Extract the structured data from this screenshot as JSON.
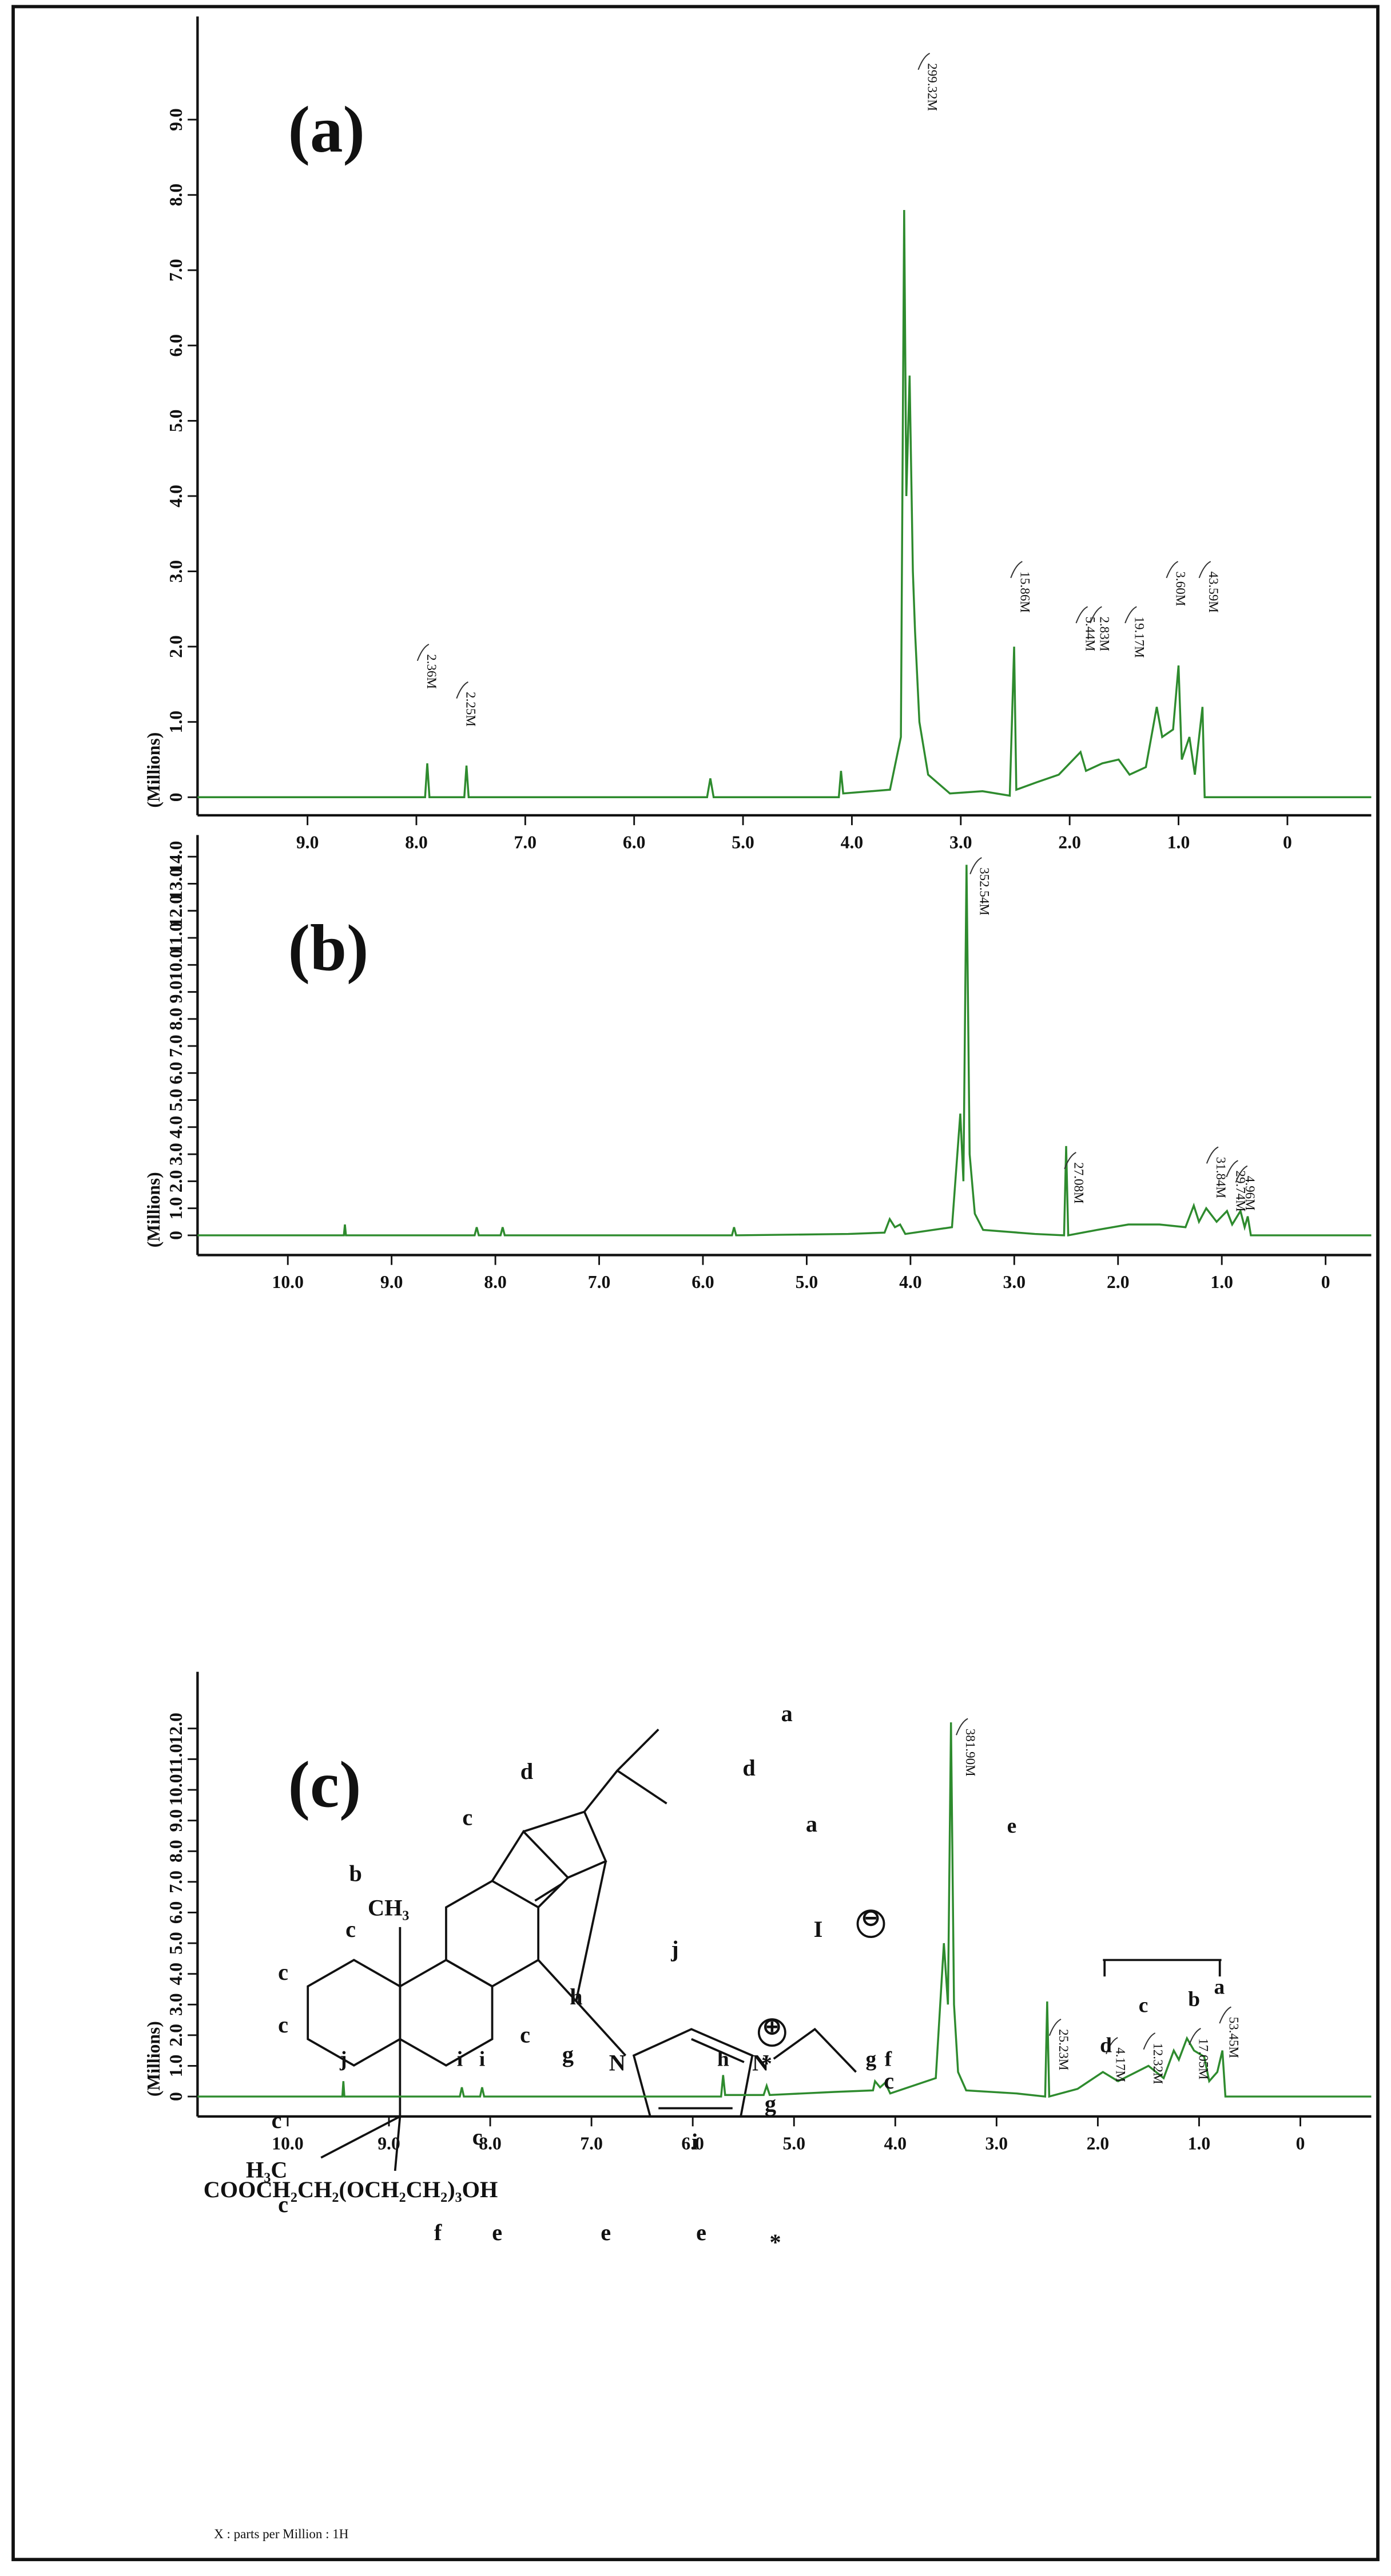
{
  "chart_data": [
    {
      "type": "line",
      "title": "(a)",
      "ylabel": "(Millions)",
      "xlim": [
        10.01,
        -0.77
      ],
      "ylim": [
        -0.24,
        10.37
      ],
      "xticks": [
        {
          "value": 9,
          "label": "9.0"
        },
        {
          "value": 8,
          "label": "8.0"
        },
        {
          "value": 7,
          "label": "7.0"
        },
        {
          "value": 6,
          "label": "6.0"
        },
        {
          "value": 5,
          "label": "5.0"
        },
        {
          "value": 4,
          "label": "4.0"
        },
        {
          "value": 3,
          "label": "3.0"
        },
        {
          "value": 2,
          "label": "2.0"
        },
        {
          "value": 1,
          "label": "1.0"
        },
        0
      ],
      "yticks": [
        0,
        {
          "value": 1,
          "label": "1.0"
        },
        {
          "value": 2,
          "label": "2.0"
        },
        {
          "value": 3,
          "label": "3.0"
        },
        {
          "value": 4,
          "label": "4.0"
        },
        {
          "value": 5,
          "label": "5.0"
        },
        {
          "value": 6,
          "label": "6.0"
        },
        {
          "value": 7,
          "label": "7.0"
        },
        {
          "value": 8,
          "label": "8.0"
        },
        {
          "value": 9,
          "label": "9.0"
        }
      ],
      "color": "#2e8b2e",
      "x": [
        10.01,
        7.92,
        7.9,
        7.88,
        7.56,
        7.54,
        7.52,
        5.33,
        5.3,
        5.27,
        4.12,
        4.1,
        4.08,
        3.65,
        3.55,
        3.52,
        3.5,
        3.47,
        3.44,
        3.42,
        3.38,
        3.3,
        3.1,
        2.8,
        2.55,
        2.51,
        2.49,
        2.3,
        2.1,
        1.9,
        1.85,
        1.7,
        1.55,
        1.45,
        1.3,
        1.2,
        1.15,
        1.05,
        1.0,
        0.97,
        0.9,
        0.85,
        0.78,
        0.76,
        -0.77
      ],
      "values": [
        0,
        0,
        0.45,
        0,
        0,
        0.42,
        0,
        0,
        0.25,
        0,
        0,
        0.35,
        0.05,
        0.1,
        0.8,
        7.8,
        4,
        5.6,
        3.0,
        2.2,
        1.0,
        0.3,
        0.05,
        0.08,
        0.02,
        2.0,
        0.1,
        0.2,
        0.3,
        0.6,
        0.35,
        0.45,
        0.5,
        0.3,
        0.4,
        1.2,
        0.8,
        0.9,
        1.75,
        0.5,
        0.8,
        0.3,
        1.2,
        0,
        0
      ],
      "annotations": [
        {
          "text": "2.36M",
          "x": 7.9,
          "y": 1.9
        },
        {
          "text": "2.25M",
          "x": 7.54,
          "y": 1.4
        },
        {
          "text": "299.32M",
          "x": 3.3,
          "y": 9.75
        },
        {
          "text": "15.86M",
          "x": 2.45,
          "y": 3.0
        },
        {
          "text": "5.44M",
          "x": 1.85,
          "y": 2.4
        },
        {
          "text": "2.83M",
          "x": 1.72,
          "y": 2.4
        },
        {
          "text": "19.17M",
          "x": 1.4,
          "y": 2.4
        },
        {
          "text": "3.60M",
          "x": 1.02,
          "y": 3.0
        },
        {
          "text": "43.59M",
          "x": 0.72,
          "y": 3.0
        }
      ]
    },
    {
      "type": "line",
      "title": "(b)",
      "ylabel": "(Millions)",
      "xlim": [
        10.87,
        -0.44
      ],
      "ylim": [
        -0.73,
        14.8
      ],
      "xticks": [
        {
          "value": 10,
          "label": "10.0"
        },
        {
          "value": 9,
          "label": "9.0"
        },
        {
          "value": 8,
          "label": "8.0"
        },
        {
          "value": 7,
          "label": "7.0"
        },
        {
          "value": 6,
          "label": "6.0"
        },
        {
          "value": 5,
          "label": "5.0"
        },
        {
          "value": 4,
          "label": "4.0"
        },
        {
          "value": 3,
          "label": "3.0"
        },
        {
          "value": 2,
          "label": "2.0"
        },
        {
          "value": 1,
          "label": "1.0"
        },
        0
      ],
      "yticks": [
        0,
        {
          "value": 1,
          "label": "1.0"
        },
        {
          "value": 2,
          "label": "2.0"
        },
        {
          "value": 3,
          "label": "3.0"
        },
        {
          "value": 4,
          "label": "4.0"
        },
        {
          "value": 5,
          "label": "5.0"
        },
        {
          "value": 6,
          "label": "6.0"
        },
        {
          "value": 7,
          "label": "7.0"
        },
        {
          "value": 8,
          "label": "8.0"
        },
        {
          "value": 9,
          "label": "9.0"
        },
        {
          "value": 10,
          "label": "10.0"
        },
        {
          "value": 11,
          "label": "11.0"
        },
        {
          "value": 12,
          "label": "12.0"
        },
        {
          "value": 13,
          "label": "13.0"
        },
        {
          "value": 14,
          "label": "14.0"
        }
      ],
      "color": "#2e8b2e",
      "x": [
        10.87,
        9.46,
        9.45,
        9.44,
        8.2,
        8.18,
        8.16,
        7.95,
        7.93,
        7.91,
        5.72,
        5.7,
        5.68,
        4.6,
        4.25,
        4.2,
        4.15,
        4.1,
        4.05,
        3.6,
        3.52,
        3.49,
        3.46,
        3.43,
        3.38,
        3.3,
        2.8,
        2.52,
        2.5,
        2.48,
        2.2,
        1.9,
        1.6,
        1.35,
        1.27,
        1.22,
        1.15,
        1.05,
        0.95,
        0.9,
        0.82,
        0.78,
        0.75,
        0.72,
        -0.44
      ],
      "values": [
        0,
        0,
        0.4,
        0,
        0,
        0.3,
        0,
        0,
        0.3,
        0,
        0,
        0.3,
        0,
        0.05,
        0.1,
        0.6,
        0.3,
        0.4,
        0.05,
        0.3,
        4.5,
        2,
        13.7,
        3,
        0.8,
        0.2,
        0.05,
        0,
        3.3,
        0,
        0.2,
        0.4,
        0.4,
        0.3,
        1.1,
        0.5,
        1.0,
        0.5,
        0.9,
        0.4,
        0.9,
        0.3,
        0.7,
        0,
        0
      ],
      "annotations": [
        {
          "text": "352.54M",
          "x": 3.33,
          "y": 13.6
        },
        {
          "text": "27.08M",
          "x": 2.42,
          "y": 2.7
        },
        {
          "text": "31.84M",
          "x": 1.05,
          "y": 2.9
        },
        {
          "text": "29.74M",
          "x": 0.86,
          "y": 2.4
        },
        {
          "text": "4.96M",
          "x": 0.77,
          "y": 2.2
        }
      ]
    },
    {
      "type": "line",
      "title": "(c)",
      "ylabel": "(Millions)",
      "xlabel": "X : parts per Million : 1H",
      "xlim": [
        10.89,
        -0.7
      ],
      "ylim": [
        -0.65,
        13.85
      ],
      "xticks": [
        {
          "value": 10,
          "label": "10.0"
        },
        {
          "value": 9,
          "label": "9.0"
        },
        {
          "value": 8,
          "label": "8.0"
        },
        {
          "value": 7,
          "label": "7.0"
        },
        {
          "value": 6,
          "label": "6.0"
        },
        {
          "value": 5,
          "label": "5.0"
        },
        {
          "value": 4,
          "label": "4.0"
        },
        {
          "value": 3,
          "label": "3.0"
        },
        {
          "value": 2,
          "label": "2.0"
        },
        {
          "value": 1,
          "label": "1.0"
        },
        0
      ],
      "yticks": [
        0,
        {
          "value": 1,
          "label": "1.0"
        },
        {
          "value": 2,
          "label": "2.0"
        },
        {
          "value": 3,
          "label": "3.0"
        },
        {
          "value": 4,
          "label": "4.0"
        },
        {
          "value": 5,
          "label": "5.0"
        },
        {
          "value": 6,
          "label": "6.0"
        },
        {
          "value": 7,
          "label": "7.0"
        },
        {
          "value": 8,
          "label": "8.0"
        },
        {
          "value": 9,
          "label": "9.0"
        },
        {
          "value": 10,
          "label": "10.0"
        },
        {
          "value": 11,
          "label": "11.0"
        },
        {
          "value": 12,
          "label": "12.0"
        }
      ],
      "color": "#2e8b2e",
      "x": [
        10.89,
        9.46,
        9.45,
        9.44,
        8.3,
        8.28,
        8.26,
        8.1,
        8.08,
        8.06,
        5.72,
        5.7,
        5.68,
        5.3,
        5.27,
        5.24,
        4.6,
        4.22,
        4.2,
        4.15,
        4.1,
        4.05,
        3.6,
        3.52,
        3.48,
        3.45,
        3.42,
        3.38,
        3.3,
        2.8,
        2.52,
        2.5,
        2.48,
        2.2,
        1.95,
        1.8,
        1.5,
        1.35,
        1.25,
        1.2,
        1.12,
        1.05,
        0.95,
        0.9,
        0.82,
        0.77,
        0.74,
        -0.7
      ],
      "values": [
        0,
        0,
        0.5,
        0,
        0,
        0.3,
        0,
        0,
        0.3,
        0,
        0,
        0.7,
        0.05,
        0.05,
        0.35,
        0.05,
        0.15,
        0.2,
        0.5,
        0.3,
        0.45,
        0.1,
        0.6,
        5,
        3,
        12.2,
        3,
        0.8,
        0.2,
        0.1,
        0,
        3.1,
        0,
        0.25,
        0.8,
        0.5,
        1.0,
        0.6,
        1.5,
        1.2,
        1.9,
        1.5,
        1.3,
        0.5,
        0.8,
        1.5,
        0,
        0
      ],
      "annotations": [
        {
          "text": "381.90M",
          "x": 3.3,
          "y": 12.0
        },
        {
          "text": "25.23M",
          "x": 2.38,
          "y": 2.2
        },
        {
          "text": "4.17M",
          "x": 1.82,
          "y": 1.6
        },
        {
          "text": "12.32M",
          "x": 1.45,
          "y": 1.75
        },
        {
          "text": "17.05M",
          "x": 1.0,
          "y": 1.9
        },
        {
          "text": "53.45M",
          "x": 0.7,
          "y": 2.6
        }
      ],
      "peak_labels": [
        {
          "text": "j",
          "x": 9.45,
          "y": 1.0
        },
        {
          "text": "i",
          "x": 8.3,
          "y": 1.0
        },
        {
          "text": "i",
          "x": 8.08,
          "y": 1.0
        },
        {
          "text": "h",
          "x": 5.7,
          "y": 1.0
        },
        {
          "text": "*",
          "x": 5.27,
          "y": 0.85
        },
        {
          "text": "g",
          "x": 4.24,
          "y": 1.0
        },
        {
          "text": "f",
          "x": 4.07,
          "y": 1.0
        },
        {
          "text": "e",
          "x": 2.85,
          "y": 8.6
        },
        {
          "text": "d",
          "x": 1.92,
          "y": 1.45
        },
        {
          "text": "c",
          "x": 1.55,
          "y": 2.75
        },
        {
          "text": "b",
          "x": 1.05,
          "y": 2.95
        },
        {
          "text": "a",
          "x": 0.8,
          "y": 3.35
        }
      ],
      "structure_labels": [
        "a",
        "d",
        "a",
        "d",
        "c",
        "b",
        "CH₃",
        "c",
        "c",
        "c",
        "c",
        "H₃C",
        "c",
        "h",
        "j",
        "g",
        "N",
        "N",
        "⊕",
        "I",
        "⊖",
        "g",
        "c",
        "i",
        "c",
        "c",
        "COOCH₂CH₂(OCH₂CH₂)₃OH",
        "f",
        "e",
        "e",
        "e",
        "*"
      ]
    }
  ]
}
